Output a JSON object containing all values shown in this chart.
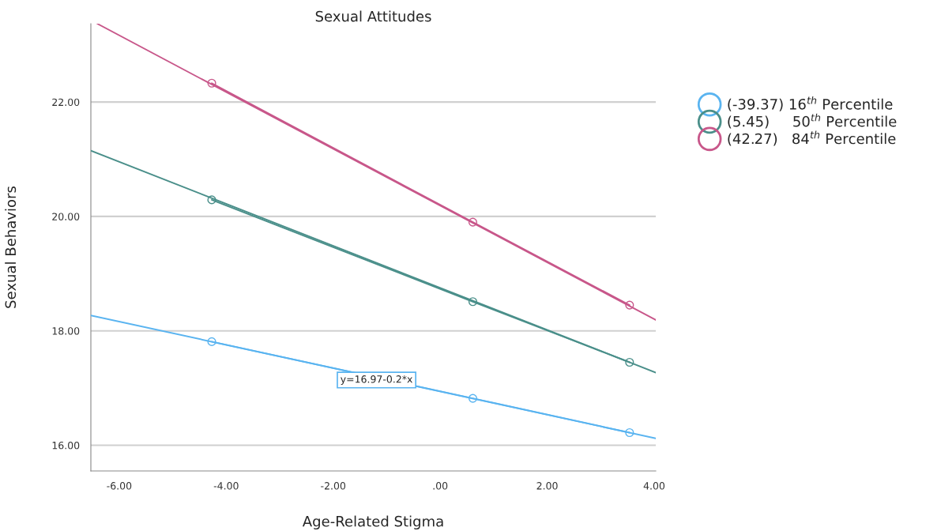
{
  "chart_data": {
    "type": "line",
    "title": "Sexual Attitudes",
    "xlabel": "Age-Related Stigma",
    "ylabel": "Sexual Behaviors",
    "xlim": [
      -6.53,
      4.03
    ],
    "ylim": [
      15.55,
      23.37
    ],
    "xticks": [
      {
        "value": -6,
        "label": "-6.00"
      },
      {
        "value": -4,
        "label": "-4.00"
      },
      {
        "value": -2,
        "label": "-2.00"
      },
      {
        "value": 0,
        "label": ".00"
      },
      {
        "value": 2,
        "label": "2.00"
      },
      {
        "value": 4,
        "label": "4.00"
      }
    ],
    "yticks": [
      {
        "value": 16,
        "label": "16.00"
      },
      {
        "value": 18,
        "label": "18.00"
      },
      {
        "value": 20,
        "label": "20.00"
      },
      {
        "value": 22,
        "label": "22.00"
      }
    ],
    "grid": "y",
    "legend": "right",
    "marker": "circle",
    "line_style": "solid",
    "series": [
      {
        "name": "(-39.37) 16$^{th}$ Percentile",
        "color": "#5ab4f0",
        "x": [
          -4.27,
          0.61,
          3.54
        ],
        "values": [
          17.81,
          16.82,
          16.22
        ]
      },
      {
        "name": "(5.45)     50$^{th}$ Percentile",
        "color": "#4a8f8a",
        "x": [
          -4.27,
          0.61,
          3.54
        ],
        "values": [
          20.29,
          18.51,
          17.45
        ]
      },
      {
        "name": "(42.27)   84$^{th}$ Percentile",
        "color": "#c8578a",
        "x": [
          -4.27,
          0.61,
          3.54
        ],
        "values": [
          22.33,
          19.9,
          18.45
        ]
      },
      {
        "color": "#5ab4f0",
        "marker": "none",
        "x": [
          -6.53,
          4.03
        ],
        "values": [
          18.27,
          16.12
        ]
      },
      {
        "color": "#4a8f8a",
        "marker": "none",
        "x": [
          -6.53,
          4.03
        ],
        "values": [
          21.15,
          17.27
        ]
      },
      {
        "color": "#c8578a",
        "marker": "none",
        "x": [
          -6.41,
          4.03
        ],
        "values": [
          23.37,
          18.19
        ]
      }
    ],
    "annotations": [
      {
        "text": "y=16.97-0.2*x",
        "x": -1.19,
        "y": 17.14
      }
    ]
  }
}
